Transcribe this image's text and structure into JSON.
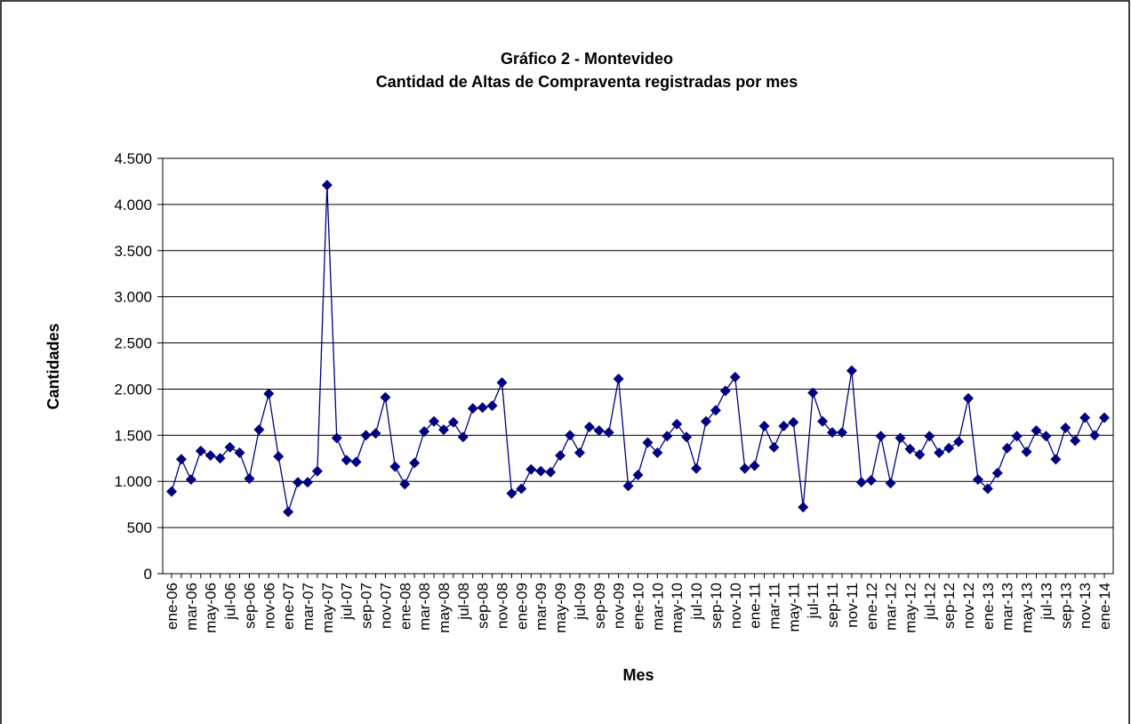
{
  "chart_data": {
    "type": "line",
    "title": "Gráfico 2 - Montevideo",
    "subtitle": "Cantidad de Altas de Compraventa registradas por mes",
    "y_label": "Cantidades",
    "x_label": "Mes",
    "categories": [
      "ene-06",
      null,
      "mar-06",
      null,
      "may-06",
      null,
      "jul-06",
      null,
      "sep-06",
      null,
      "nov-06",
      null,
      "ene-07",
      null,
      "mar-07",
      null,
      "may-07",
      null,
      "jul-07",
      null,
      "sep-07",
      null,
      "nov-07",
      null,
      "ene-08",
      null,
      "mar-08",
      null,
      "may-08",
      null,
      "jul-08",
      null,
      "sep-08",
      null,
      "nov-08",
      null,
      "ene-09",
      null,
      "mar-09",
      null,
      "may-09",
      null,
      "jul-09",
      null,
      "sep-09",
      null,
      "nov-09",
      null,
      "ene-10",
      null,
      "mar-10",
      null,
      "may-10",
      null,
      "jul-10",
      null,
      "sep-10",
      null,
      "nov-10",
      null,
      "ene-11",
      null,
      "mar-11",
      null,
      "may-11",
      null,
      "jul-11",
      null,
      "sep-11",
      null,
      "nov-11",
      null,
      "ene-12",
      null,
      "mar-12",
      null,
      "may-12",
      null,
      "jul-12",
      null,
      "sep-12",
      null,
      "nov-12",
      null,
      "ene-13",
      null,
      "mar-13",
      null,
      "may-13",
      null,
      "jul-13",
      null,
      "sep-13",
      null,
      "nov-13",
      null,
      "ene-14"
    ],
    "series": [
      {
        "name": "Altas",
        "color": "#000080",
        "values": [
          890,
          1240,
          1020,
          1330,
          1280,
          1250,
          1370,
          1310,
          1030,
          1560,
          1950,
          1270,
          670,
          990,
          990,
          1110,
          4210,
          1470,
          1230,
          1210,
          1500,
          1520,
          1910,
          1160,
          970,
          1200,
          1540,
          1650,
          1560,
          1640,
          1480,
          1790,
          1800,
          1820,
          2070,
          870,
          920,
          1130,
          1110,
          1100,
          1280,
          1500,
          1310,
          1590,
          1550,
          1530,
          2110,
          950,
          1070,
          1420,
          1310,
          1490,
          1620,
          1480,
          1140,
          1650,
          1770,
          1980,
          2130,
          1140,
          1170,
          1600,
          1370,
          1600,
          1640,
          720,
          1960,
          1650,
          1530,
          1530,
          2200,
          990,
          1010,
          1490,
          980,
          1470,
          1350,
          1290,
          1490,
          1310,
          1360,
          1430,
          1900,
          1020,
          920,
          1090,
          1360,
          1490,
          1320,
          1550,
          1490,
          1240,
          1580,
          1440,
          1690,
          1500,
          1690
        ]
      }
    ],
    "ylim": [
      0,
      4500
    ],
    "yticks": [
      0,
      500,
      {
        "value": 1000,
        "label": "1.000"
      },
      {
        "value": 1500,
        "label": "1.500"
      },
      {
        "value": 2000,
        "label": "2.000"
      },
      {
        "value": 2500,
        "label": "2.500"
      },
      {
        "value": 3000,
        "label": "3.000"
      },
      {
        "value": 3500,
        "label": "3.500"
      },
      {
        "value": 4000,
        "label": "4.000"
      },
      {
        "value": 4500,
        "label": "4.500"
      }
    ],
    "grid": true
  }
}
